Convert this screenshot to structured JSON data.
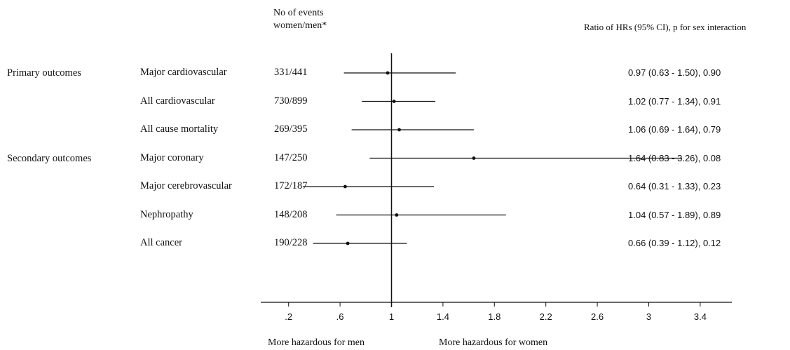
{
  "headers": {
    "events_line1": "No of events",
    "events_line2": "women/men*",
    "ratio": "Ratio of HRs (95% CI), p for sex interaction"
  },
  "groups": [
    "Primary outcomes",
    "Secondary outcomes"
  ],
  "x_annotations": {
    "left": "More hazardous for men",
    "right": "More hazardous for women"
  },
  "chart_data": {
    "type": "forest",
    "reference_line": 1,
    "xlim": [
      0,
      3.9
    ],
    "x_ticks": [
      0.2,
      0.6,
      1,
      1.4,
      1.8,
      2.2,
      2.6,
      3,
      3.4
    ],
    "x_tick_labels": [
      ".2",
      ".6",
      "1",
      "1.4",
      "1.8",
      "2.2",
      "2.6",
      "3",
      "3.4"
    ],
    "rows": [
      {
        "group": "Primary outcomes",
        "outcome": "Major cardiovascular",
        "events": "331/441",
        "ratio": 0.97,
        "lo": 0.63,
        "hi": 1.5,
        "label": "0.97 (0.63 - 1.50), 0.90"
      },
      {
        "group": "",
        "outcome": "All cardiovascular",
        "events": "730/899",
        "ratio": 1.02,
        "lo": 0.77,
        "hi": 1.34,
        "label": "1.02 (0.77 - 1.34), 0.91"
      },
      {
        "group": "",
        "outcome": "All cause mortality",
        "events": "269/395",
        "ratio": 1.06,
        "lo": 0.69,
        "hi": 1.64,
        "label": "1.06 (0.69 - 1.64), 0.79"
      },
      {
        "group": "Secondary outcomes",
        "outcome": "Major coronary",
        "events": "147/250",
        "ratio": 1.64,
        "lo": 0.83,
        "hi": 3.26,
        "label": "1.64 (0.83 - 3.26), 0.08"
      },
      {
        "group": "",
        "outcome": "Major cerebrovascular",
        "events": "172/187",
        "ratio": 0.64,
        "lo": 0.31,
        "hi": 1.33,
        "label": "0.64 (0.31 - 1.33), 0.23"
      },
      {
        "group": "",
        "outcome": "Nephropathy",
        "events": "148/208",
        "ratio": 1.04,
        "lo": 0.57,
        "hi": 1.89,
        "label": "1.04 (0.57 - 1.89), 0.89"
      },
      {
        "group": "",
        "outcome": "All cancer",
        "events": "190/228",
        "ratio": 0.66,
        "lo": 0.39,
        "hi": 1.12,
        "label": "0.66 (0.39 - 1.12), 0.12"
      }
    ]
  }
}
